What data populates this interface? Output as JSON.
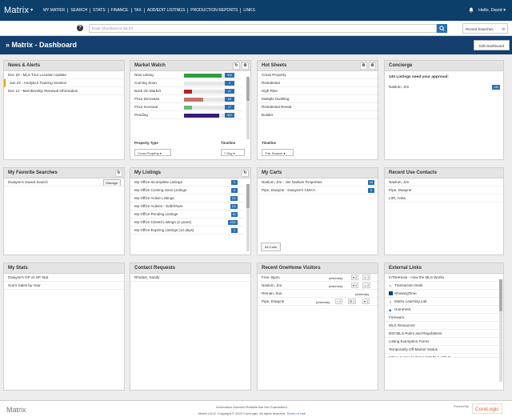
{
  "nav": {
    "logo": "Matrix",
    "links": [
      "MY MATRIX",
      "SEARCH",
      "STATS",
      "FINANCE",
      "TAX",
      "ADD/EDIT LISTINGS",
      "PRODUCTION REPORTS",
      "LINKS"
    ],
    "user": "Hello, David"
  },
  "search": {
    "placeholder": "Enter Shorthand or MLS#",
    "recent_label": "Recent Searches"
  },
  "title": {
    "text": "Matrix - Dashboard",
    "edit_label": "Edit Dashboard"
  },
  "news": {
    "title": "News & Alerts",
    "items": [
      "Dec 20 - MLS Tour Location Update",
      "Jan 22 - Analytics Training Session",
      "Dec 12 - Membership Renewal Information"
    ]
  },
  "market": {
    "title": "Market Watch",
    "rows": [
      {
        "label": "New Listing",
        "count": "334",
        "fill": 0.82,
        "color": "#2e9e3a"
      },
      {
        "label": "Coming Soon",
        "count": "3",
        "fill": 0.0,
        "color": "#2e9e3a"
      },
      {
        "label": "Back On Market",
        "count": "21",
        "fill": 0.18,
        "color": "#b02323"
      },
      {
        "label": "Price Decrease",
        "count": "68",
        "fill": 0.42,
        "color": "#c77070"
      },
      {
        "label": "Price Increase",
        "count": "27",
        "fill": 0.18,
        "color": "#6cb874"
      },
      {
        "label": "Pending",
        "count": "321",
        "fill": 0.78,
        "color": "#3a1a7a"
      }
    ],
    "ptype_label": "Property Type",
    "ptype_value": "Cross Property",
    "timeline_label": "Timeline",
    "timeline_value": "7 Day"
  },
  "hot": {
    "title": "Hot Sheets",
    "items": [
      "Cross Property",
      "Residential",
      "High Rise",
      "Multiple Dwelling",
      "Residential Rental",
      "Builder"
    ],
    "timeline_label": "Timeline",
    "timeline_value": "This Season"
  },
  "concierge": {
    "title": "Concierge",
    "need": "140 Listings need your approval:",
    "agent": "Naslum, Jim",
    "count": "140"
  },
  "fav": {
    "title": "My Favorite Searches",
    "items": [
      {
        "label": "Dwayne's Saved Search",
        "action": "Manage"
      }
    ]
  },
  "listings": {
    "title": "My Listings",
    "rows": [
      {
        "label": "My Office Incomplete Listings",
        "count": "4"
      },
      {
        "label": "My Office Coming Soon Listings",
        "count": "5"
      },
      {
        "label": "My Office Active Listings",
        "count": "111"
      },
      {
        "label": "My Office Actives - Edit/Share",
        "count": "111"
      },
      {
        "label": "My Office Pending Listings",
        "count": "81"
      },
      {
        "label": "My Office Closed Listings (2 years)",
        "count": "1911"
      },
      {
        "label": "My Office Expiring Listings (14 days)",
        "count": "3"
      }
    ]
  },
  "carts": {
    "title": "My Carts",
    "rows": [
      {
        "label": "Naslum, Jim - Jim Naslum Properties",
        "count": "15"
      },
      {
        "label": "Pipe, Dwayne - Dwayne's CMA's",
        "count": "5"
      }
    ],
    "all_label": "All Carts"
  },
  "contacts": {
    "title": "Recent Use Contacts",
    "items": [
      "Naslum, Jim",
      "Pipe, Dwayne",
      "LIPI, Anita"
    ]
  },
  "stats": {
    "title": "My Stats",
    "items": [
      "Dwayne's OP vs SP Stat",
      "Sue's Sales by Year"
    ]
  },
  "requests": {
    "title": "Contact Requests",
    "items": [
      "Rhodes, Sandy"
    ]
  },
  "visitors": {
    "title": "Recent OneHome Visitors",
    "rows": [
      {
        "name": "Free, Bjorn",
        "when": "yesterday",
        "likes": "2",
        "comments": "1"
      },
      {
        "name": "Naslum, Jim",
        "when": "yesterday",
        "likes": "4",
        "comments": "2"
      },
      {
        "name": "Reman, Sue",
        "when": "yesterday",
        "likes": "",
        "comments": ""
      },
      {
        "name": "Pipe, Dwayne",
        "when": "yesterday",
        "searches": "1",
        "views": "1",
        "likes": "1"
      }
    ]
  },
  "external": {
    "title": "External Links",
    "items": [
      "InTheKnow - How the MLS Works",
      "Transaction Desk",
      "ShowingTime",
      "Matrix Learning Lab",
      "HomeVert",
      "Forewarn",
      "MLS Resources",
      "BSCMLS Rules and Regulations",
      "Listing Exemption Forms",
      "Temporarily Off-Market Status",
      "When & How to Enter COMP & SOLD"
    ]
  },
  "footer": {
    "logo": "Matrix",
    "line1": "Information Deemed Reliable But Not Guaranteed.",
    "line2": "Matrix v11.8. Copyright © 2023 CoreLogic. All rights reserved.",
    "terms": "Terms of Use",
    "powered": "Powered By",
    "brand": "CoreLogic"
  },
  "colors": {
    "nav_bg": "#0d3f6b",
    "title_bg": "#143f6e",
    "badge": "#2b6fb0"
  }
}
